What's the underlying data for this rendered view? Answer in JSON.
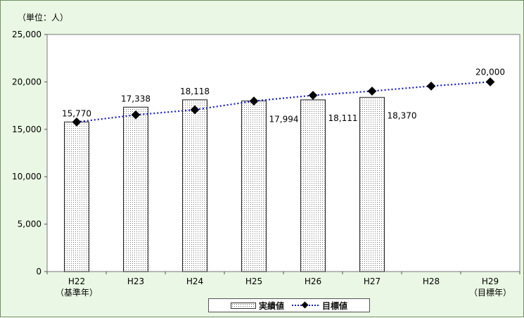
{
  "chart_data": {
    "type": "bar",
    "unit_label": "（単位：人）",
    "categories": [
      "H22",
      "H23",
      "H24",
      "H25",
      "H26",
      "H27",
      "H28",
      "H29"
    ],
    "category_sublabels": [
      "（基準年）",
      "",
      "",
      "",
      "",
      "",
      "",
      "（目標年）"
    ],
    "ylim": [
      0,
      25000
    ],
    "yticks": [
      "0",
      "5,000",
      "10,000",
      "15,000",
      "20,000",
      "25,000"
    ],
    "ytick_values": [
      0,
      5000,
      10000,
      15000,
      20000,
      25000
    ],
    "grid": false,
    "legend_position": "bottom",
    "series": [
      {
        "name": "実績値",
        "type": "bar",
        "values": [
          15770,
          17338,
          18118,
          17994,
          18111,
          18370,
          null,
          null
        ],
        "labels": [
          "15,770",
          "17,338",
          "18,118",
          "17,994",
          "18,111",
          "18,370",
          "",
          ""
        ]
      },
      {
        "name": "目標値",
        "type": "line",
        "values": [
          15770,
          16520,
          17060,
          17980,
          18580,
          19030,
          19560,
          20000
        ],
        "labels": [
          "",
          "",
          "",
          "",
          "",
          "",
          "",
          "20,000"
        ],
        "color": "#1a1acc"
      }
    ]
  }
}
